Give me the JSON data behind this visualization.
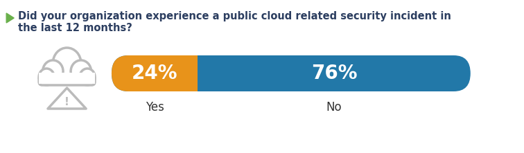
{
  "question_line1": "Did your organization experience a public cloud related security incident in",
  "question_line2": "the last 12 months?",
  "arrow_color": "#6ab04c",
  "yes_pct": 24,
  "no_pct": 76,
  "yes_label": "Yes",
  "no_label": "No",
  "yes_color": "#e8931a",
  "no_color": "#2278a8",
  "text_color": "#ffffff",
  "label_color": "#333333",
  "question_color": "#2c3e60",
  "background_color": "#ffffff",
  "cloud_color": "#bbbbbb",
  "pct_fontsize": 20,
  "label_fontsize": 12,
  "question_fontsize": 10.5
}
